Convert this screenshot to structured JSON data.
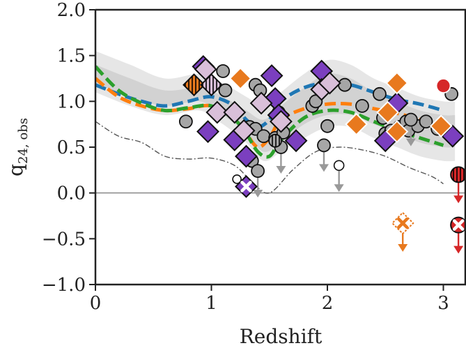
{
  "chart_data": {
    "type": "scatter",
    "title": "",
    "xlabel": "Redshift",
    "ylabel": "q",
    "ylabel_subscript": "24, obs",
    "xlim": [
      0,
      3.2
    ],
    "ylim": [
      -1.0,
      2.0
    ],
    "xticks": [
      0,
      1,
      2,
      3
    ],
    "xtick_labels": [
      "0",
      "1",
      "2",
      "3"
    ],
    "yticks": [
      -1.0,
      -0.5,
      0.0,
      0.5,
      1.0,
      1.5,
      2.0
    ],
    "ytick_labels": [
      "−1.0",
      "−0.5",
      "0.0",
      "0.5",
      "1.0",
      "1.5",
      "2.0"
    ],
    "grid": false,
    "reference_line": {
      "y": 0.0,
      "color": "#888888"
    },
    "colors": {
      "blue": "#1f77b4",
      "orange": "#ff7f0e",
      "green": "#2ca02c",
      "band_outer": "#e6e6e6",
      "band_inner": "#d2d2d2",
      "gray_point": "#a6a6a6",
      "purple": "#7b3fbf",
      "pink": "#d9bfd9",
      "orange_point": "#e8791e",
      "red": "#d62728"
    },
    "band_outer": {
      "x": [
        0,
        0.3,
        0.6,
        0.9,
        1.1,
        1.3,
        1.45,
        1.6,
        1.8,
        2.0,
        2.2,
        2.4,
        2.6,
        2.8,
        3.0,
        3.1
      ],
      "lower": [
        1.1,
        0.95,
        0.85,
        0.9,
        0.75,
        0.55,
        0.35,
        0.45,
        0.6,
        0.72,
        0.72,
        0.6,
        0.5,
        0.4,
        0.35,
        0.35
      ],
      "upper": [
        1.55,
        1.4,
        1.25,
        1.3,
        1.2,
        1.05,
        0.95,
        1.1,
        1.3,
        1.45,
        1.4,
        1.25,
        1.15,
        1.05,
        1.0,
        1.0
      ]
    },
    "band_inner": {
      "x": [
        0,
        0.3,
        0.6,
        0.9,
        1.1,
        1.3,
        1.45,
        1.6,
        1.8,
        2.0,
        2.2,
        2.4,
        2.6,
        2.8,
        3.0,
        3.1
      ],
      "lower": [
        1.2,
        1.05,
        0.95,
        1.0,
        0.85,
        0.65,
        0.45,
        0.55,
        0.75,
        0.85,
        0.85,
        0.75,
        0.65,
        0.55,
        0.5,
        0.5
      ],
      "upper": [
        1.4,
        1.25,
        1.12,
        1.15,
        1.05,
        0.9,
        0.8,
        0.95,
        1.15,
        1.3,
        1.25,
        1.1,
        1.0,
        0.9,
        0.85,
        0.85
      ]
    },
    "lower_limit_curve": {
      "x": [
        0,
        0.2,
        0.4,
        0.6,
        0.8,
        1.0,
        1.2,
        1.35,
        1.5,
        1.7,
        1.9,
        2.1,
        2.3,
        2.5,
        2.7,
        2.9,
        3.0
      ],
      "y": [
        0.78,
        0.62,
        0.55,
        0.4,
        0.37,
        0.38,
        0.3,
        0.12,
        0.0,
        0.25,
        0.45,
        0.5,
        0.47,
        0.4,
        0.28,
        0.18,
        0.1
      ]
    },
    "series": [
      {
        "color": "#1f77b4",
        "style": "dashed",
        "x": [
          0,
          0.2,
          0.4,
          0.6,
          0.8,
          1.0,
          1.2,
          1.3,
          1.4,
          1.5,
          1.6,
          1.8,
          2.0,
          2.2,
          2.4,
          2.6,
          2.8,
          3.0
        ],
        "y": [
          1.18,
          1.08,
          1.0,
          0.95,
          1.0,
          1.05,
          0.95,
          0.8,
          0.72,
          0.8,
          1.0,
          1.15,
          1.2,
          1.18,
          1.1,
          1.02,
          0.97,
          0.9
        ]
      },
      {
        "color": "#ff7f0e",
        "style": "dashed",
        "x": [
          0,
          0.2,
          0.4,
          0.6,
          0.8,
          1.0,
          1.2,
          1.3,
          1.4,
          1.5,
          1.6,
          1.8,
          2.0,
          2.2,
          2.4,
          2.6,
          2.8,
          3.0
        ],
        "y": [
          1.25,
          1.05,
          0.95,
          0.9,
          0.92,
          0.95,
          0.8,
          0.65,
          0.5,
          0.6,
          0.8,
          0.92,
          0.97,
          0.97,
          0.92,
          0.87,
          0.8,
          0.7
        ]
      },
      {
        "color": "#2ca02c",
        "style": "dashed",
        "x": [
          0,
          0.2,
          0.4,
          0.6,
          0.8,
          1.0,
          1.2,
          1.3,
          1.4,
          1.5,
          1.6,
          1.8,
          2.0,
          2.2,
          2.4,
          2.6,
          2.8,
          3.0
        ],
        "y": [
          1.38,
          1.12,
          0.98,
          0.9,
          0.93,
          0.95,
          0.8,
          0.65,
          0.45,
          0.4,
          0.58,
          0.82,
          0.9,
          0.88,
          0.78,
          0.68,
          0.6,
          0.52
        ]
      }
    ],
    "points": [
      {
        "x": 0.78,
        "y": 0.78,
        "marker": "circle",
        "color": "gray"
      },
      {
        "x": 1.1,
        "y": 1.33,
        "marker": "circle",
        "color": "gray"
      },
      {
        "x": 1.12,
        "y": 1.12,
        "marker": "circle",
        "color": "gray"
      },
      {
        "x": 1.38,
        "y": 1.18,
        "marker": "circle",
        "color": "gray"
      },
      {
        "x": 1.42,
        "y": 1.12,
        "marker": "circle",
        "color": "gray"
      },
      {
        "x": 1.33,
        "y": 0.72,
        "marker": "circle",
        "color": "gray"
      },
      {
        "x": 1.38,
        "y": 0.7,
        "marker": "circle",
        "color": "gray"
      },
      {
        "x": 1.45,
        "y": 0.62,
        "marker": "circle",
        "color": "gray"
      },
      {
        "x": 1.55,
        "y": 0.6,
        "marker": "circle",
        "color": "gray"
      },
      {
        "x": 1.62,
        "y": 0.66,
        "marker": "circle",
        "color": "gray"
      },
      {
        "x": 1.35,
        "y": 0.35,
        "marker": "circle",
        "color": "gray"
      },
      {
        "x": 1.58,
        "y": 0.88,
        "marker": "circle",
        "color": "gray"
      },
      {
        "x": 1.87,
        "y": 0.95,
        "marker": "circle",
        "color": "gray"
      },
      {
        "x": 1.9,
        "y": 1.0,
        "marker": "circle",
        "color": "gray"
      },
      {
        "x": 2.0,
        "y": 0.73,
        "marker": "circle",
        "color": "gray"
      },
      {
        "x": 2.15,
        "y": 1.18,
        "marker": "circle",
        "color": "gray"
      },
      {
        "x": 2.3,
        "y": 0.95,
        "marker": "circle",
        "color": "gray"
      },
      {
        "x": 2.45,
        "y": 1.08,
        "marker": "circle",
        "color": "gray"
      },
      {
        "x": 2.48,
        "y": 0.82,
        "marker": "circle",
        "color": "gray"
      },
      {
        "x": 2.5,
        "y": 0.65,
        "marker": "circle",
        "color": "gray"
      },
      {
        "x": 2.55,
        "y": 0.68,
        "marker": "circle",
        "color": "gray"
      },
      {
        "x": 2.62,
        "y": 0.72,
        "marker": "circle",
        "color": "gray"
      },
      {
        "x": 2.68,
        "y": 0.78,
        "marker": "circle",
        "color": "gray"
      },
      {
        "x": 2.7,
        "y": 0.68,
        "marker": "circle",
        "color": "gray"
      },
      {
        "x": 2.78,
        "y": 0.73,
        "marker": "circle",
        "color": "gray"
      },
      {
        "x": 2.85,
        "y": 0.78,
        "marker": "circle",
        "color": "gray"
      },
      {
        "x": 2.95,
        "y": 0.7,
        "marker": "circle",
        "color": "gray"
      },
      {
        "x": 3.07,
        "y": 1.08,
        "marker": "circle",
        "color": "gray"
      },
      {
        "x": 3.0,
        "y": 1.17,
        "marker": "circle",
        "color": "red"
      },
      {
        "x": 1.4,
        "y": 0.24,
        "marker": "circle-limit",
        "color": "gray"
      },
      {
        "x": 1.6,
        "y": 0.5,
        "marker": "circle-limit",
        "color": "gray"
      },
      {
        "x": 1.97,
        "y": 0.52,
        "marker": "circle-limit",
        "color": "gray"
      },
      {
        "x": 2.1,
        "y": 0.3,
        "marker": "circle-open-limit",
        "color": "white"
      },
      {
        "x": 2.72,
        "y": 0.8,
        "marker": "circle-limit",
        "color": "gray"
      },
      {
        "x": 1.55,
        "y": 0.57,
        "marker": "circle-hatched",
        "color": "gray"
      },
      {
        "x": 1.22,
        "y": 0.15,
        "marker": "circle-open",
        "color": "white"
      },
      {
        "x": 3.13,
        "y": 0.2,
        "marker": "circle-hatched-limit",
        "color": "red"
      },
      {
        "x": 3.13,
        "y": -0.35,
        "marker": "circle-cross-limit",
        "color": "red"
      },
      {
        "x": 0.93,
        "y": 1.38,
        "marker": "diamond",
        "color": "purple"
      },
      {
        "x": 0.97,
        "y": 0.67,
        "marker": "diamond",
        "color": "purple"
      },
      {
        "x": 1.2,
        "y": 0.58,
        "marker": "diamond",
        "color": "purple"
      },
      {
        "x": 1.3,
        "y": 0.4,
        "marker": "diamond",
        "color": "purple"
      },
      {
        "x": 1.52,
        "y": 1.28,
        "marker": "diamond",
        "color": "purple"
      },
      {
        "x": 1.55,
        "y": 1.03,
        "marker": "diamond",
        "color": "purple"
      },
      {
        "x": 1.58,
        "y": 0.85,
        "marker": "diamond",
        "color": "purple"
      },
      {
        "x": 1.73,
        "y": 0.57,
        "marker": "diamond",
        "color": "purple"
      },
      {
        "x": 1.95,
        "y": 1.33,
        "marker": "diamond",
        "color": "purple"
      },
      {
        "x": 2.5,
        "y": 0.57,
        "marker": "diamond",
        "color": "purple"
      },
      {
        "x": 2.6,
        "y": 0.98,
        "marker": "diamond",
        "color": "purple"
      },
      {
        "x": 3.08,
        "y": 0.62,
        "marker": "diamond",
        "color": "purple"
      },
      {
        "x": 0.95,
        "y": 1.35,
        "marker": "diamond",
        "color": "pink"
      },
      {
        "x": 1.05,
        "y": 0.88,
        "marker": "diamond",
        "color": "pink"
      },
      {
        "x": 1.2,
        "y": 0.88,
        "marker": "diamond",
        "color": "pink"
      },
      {
        "x": 1.28,
        "y": 0.68,
        "marker": "diamond",
        "color": "pink"
      },
      {
        "x": 1.43,
        "y": 0.98,
        "marker": "diamond",
        "color": "pink"
      },
      {
        "x": 1.6,
        "y": 0.78,
        "marker": "diamond",
        "color": "pink"
      },
      {
        "x": 1.95,
        "y": 1.13,
        "marker": "diamond",
        "color": "pink"
      },
      {
        "x": 2.02,
        "y": 1.2,
        "marker": "diamond",
        "color": "pink"
      },
      {
        "x": 1.25,
        "y": 1.25,
        "marker": "diamond",
        "color": "orange"
      },
      {
        "x": 2.25,
        "y": 0.75,
        "marker": "diamond",
        "color": "orange"
      },
      {
        "x": 2.52,
        "y": 0.88,
        "marker": "diamond",
        "color": "orange"
      },
      {
        "x": 2.6,
        "y": 1.2,
        "marker": "diamond",
        "color": "orange"
      },
      {
        "x": 2.98,
        "y": 0.73,
        "marker": "diamond",
        "color": "orange"
      },
      {
        "x": 2.6,
        "y": 0.67,
        "marker": "diamond",
        "color": "orange"
      },
      {
        "x": 0.85,
        "y": 1.18,
        "marker": "diamond-hatched",
        "color": "orange"
      },
      {
        "x": 1.0,
        "y": 1.18,
        "marker": "diamond-hatched",
        "color": "pink"
      },
      {
        "x": 1.3,
        "y": 0.07,
        "marker": "diamond-cross",
        "color": "purple"
      },
      {
        "x": 2.65,
        "y": -0.33,
        "marker": "diamond-cross-limit",
        "color": "orange"
      }
    ]
  }
}
